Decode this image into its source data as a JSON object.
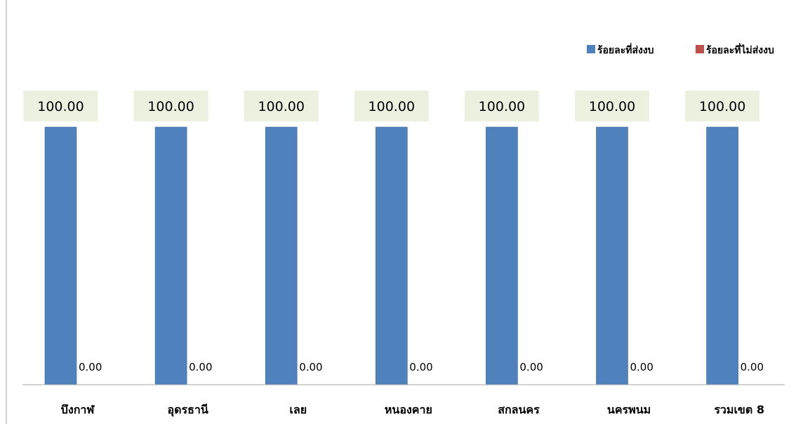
{
  "chart_data": {
    "type": "bar",
    "categories": [
      "บึงกาฬ",
      "อุดรธานี",
      "เลย",
      "หนองคาย",
      "สกลนคร",
      "นครพนม",
      "รวมเขต 8"
    ],
    "series": [
      {
        "name": "ร้อยละที่ส่งงบ",
        "color": "#4f81bd",
        "values": [
          100.0,
          100.0,
          100.0,
          100.0,
          100.0,
          100.0,
          100.0
        ]
      },
      {
        "name": "ร้อยละที่ไม่ส่งงบ",
        "color": "#c0504d",
        "values": [
          0.0,
          0.0,
          0.0,
          0.0,
          0.0,
          0.0,
          0.0
        ]
      }
    ],
    "data_labels": {
      "series_0": [
        "100.00",
        "100.00",
        "100.00",
        "100.00",
        "100.00",
        "100.00",
        "100.00"
      ],
      "series_1": [
        "0.00",
        "0.00",
        "0.00",
        "0.00",
        "0.00",
        "0.00",
        "0.00"
      ]
    },
    "label_background": "#ebf1de",
    "ylim": [
      0,
      100
    ],
    "grid": false,
    "legend_position": "top-right"
  }
}
